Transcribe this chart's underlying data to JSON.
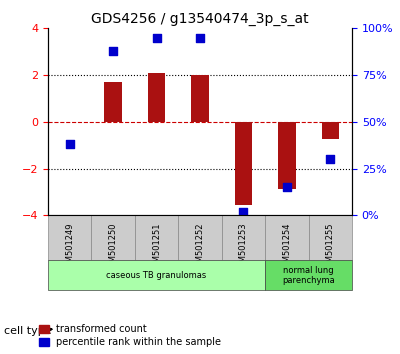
{
  "title": "GDS4256 / g13540474_3p_s_at",
  "samples": [
    "GSM501249",
    "GSM501250",
    "GSM501251",
    "GSM501252",
    "GSM501253",
    "GSM501254",
    "GSM501255"
  ],
  "transformed_count": [
    0.0,
    1.7,
    2.1,
    2.0,
    -3.55,
    -2.85,
    -0.75
  ],
  "percentile_rank": [
    38,
    88,
    95,
    95,
    2,
    15,
    30
  ],
  "ylim_left": [
    -4,
    4
  ],
  "ylim_right": [
    0,
    100
  ],
  "bar_color": "#aa1111",
  "dot_color": "#0000cc",
  "zero_line_color": "#cc0000",
  "grid_color": "#000000",
  "cell_types": [
    {
      "label": "caseous TB granulomas",
      "samples_idx": [
        0,
        4
      ],
      "color": "#aaffaa"
    },
    {
      "label": "normal lung\nparenchyma",
      "samples_idx": [
        5,
        6
      ],
      "color": "#66dd66"
    }
  ],
  "legend_bar_label": "transformed count",
  "legend_dot_label": "percentile rank within the sample",
  "cell_type_label": "cell type",
  "background_color": "#ffffff",
  "tick_label_fontsize": 7,
  "title_fontsize": 10
}
